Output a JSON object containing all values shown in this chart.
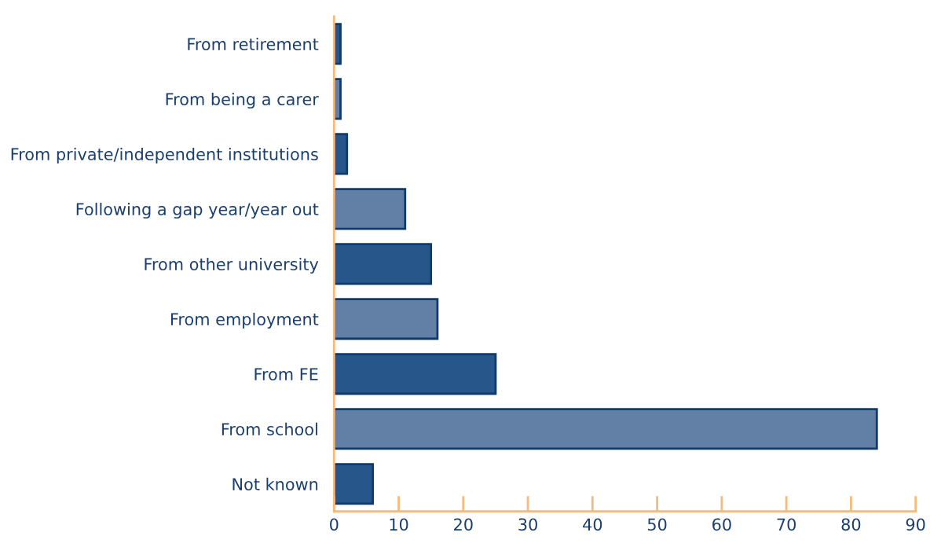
{
  "chart_data": {
    "type": "bar",
    "orientation": "horizontal",
    "categories": [
      "From retirement",
      "From being a carer",
      "From private/independent institutions",
      "Following a gap year/year out",
      "From other university",
      "From employment",
      "From FE",
      "From school",
      "Not known"
    ],
    "values": [
      1,
      1,
      2,
      11,
      15,
      16,
      25,
      84,
      6
    ],
    "colors": [
      "#27568a",
      "#627fa6",
      "#27568a",
      "#627fa6",
      "#27568a",
      "#627fa6",
      "#27568a",
      "#627fa6",
      "#27568a"
    ],
    "xlim": [
      0,
      90
    ],
    "xticks": [
      0,
      10,
      20,
      30,
      40,
      50,
      60,
      70,
      80,
      90
    ],
    "grid": false
  }
}
